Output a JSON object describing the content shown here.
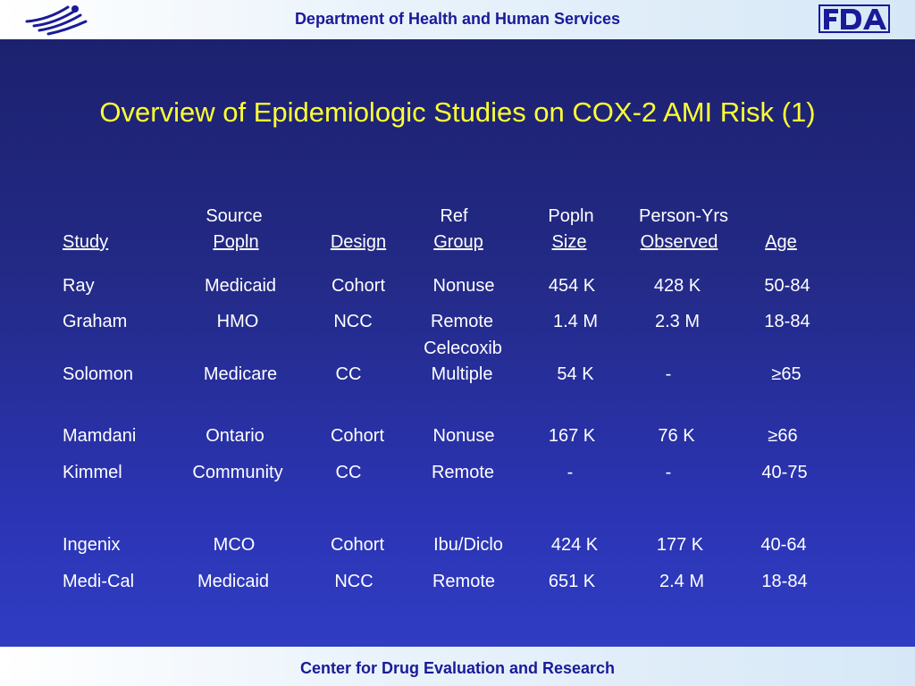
{
  "header": {
    "title": "Department of Health and Human Services",
    "left_icon": "hhs-eagle-icon",
    "right_icon": "fda-logo-icon"
  },
  "footer": {
    "title": "Center for Drug Evaluation and Research"
  },
  "slide": {
    "title": "Overview of Epidemiologic Studies on COX-2 AMI Risk (1)"
  },
  "table": {
    "headers_top": {
      "source": "Source",
      "ref": "Ref",
      "popln": "Popln",
      "person_yrs": "Person-Yrs"
    },
    "headers": {
      "study": "Study",
      "source_popln": "Popln",
      "design": "Design",
      "ref_group": "Group",
      "popln_size": "Size",
      "observed": "Observed",
      "age": "Age"
    },
    "rows": [
      {
        "study": "Ray",
        "popln": "Medicaid",
        "design": "Cohort",
        "ref": "Nonuse",
        "size": "454 K",
        "person_yrs": "428 K",
        "age": "50-84"
      },
      {
        "study": "Graham",
        "popln": "HMO",
        "design": "NCC",
        "ref": "Remote",
        "ref2": "Celecoxib",
        "size": "1.4 M",
        "person_yrs": "2.3 M",
        "age": "18-84"
      },
      {
        "study": "Solomon",
        "popln": "Medicare",
        "design": "CC",
        "ref": "Multiple",
        "size": "54 K",
        "person_yrs": "-",
        "age": "≥65"
      },
      {
        "study": "Mamdani",
        "popln": "Ontario",
        "design": "Cohort",
        "ref": "Nonuse",
        "size": "167 K",
        "person_yrs": "76 K",
        "age": "≥66"
      },
      {
        "study": "Kimmel",
        "popln": "Community",
        "design": "CC",
        "ref": "Remote",
        "size": "-",
        "person_yrs": "-",
        "age": "40-75"
      },
      {
        "study": "Ingenix",
        "popln": "MCO",
        "design": "Cohort",
        "ref": "Ibu/Diclo",
        "size": "424 K",
        "person_yrs": "177 K",
        "age": "40-64"
      },
      {
        "study": "Medi-Cal",
        "popln": "Medicaid",
        "design": "NCC",
        "ref": "Remote",
        "size": "651 K",
        "person_yrs": "2.4 M",
        "age": "18-84"
      }
    ]
  }
}
